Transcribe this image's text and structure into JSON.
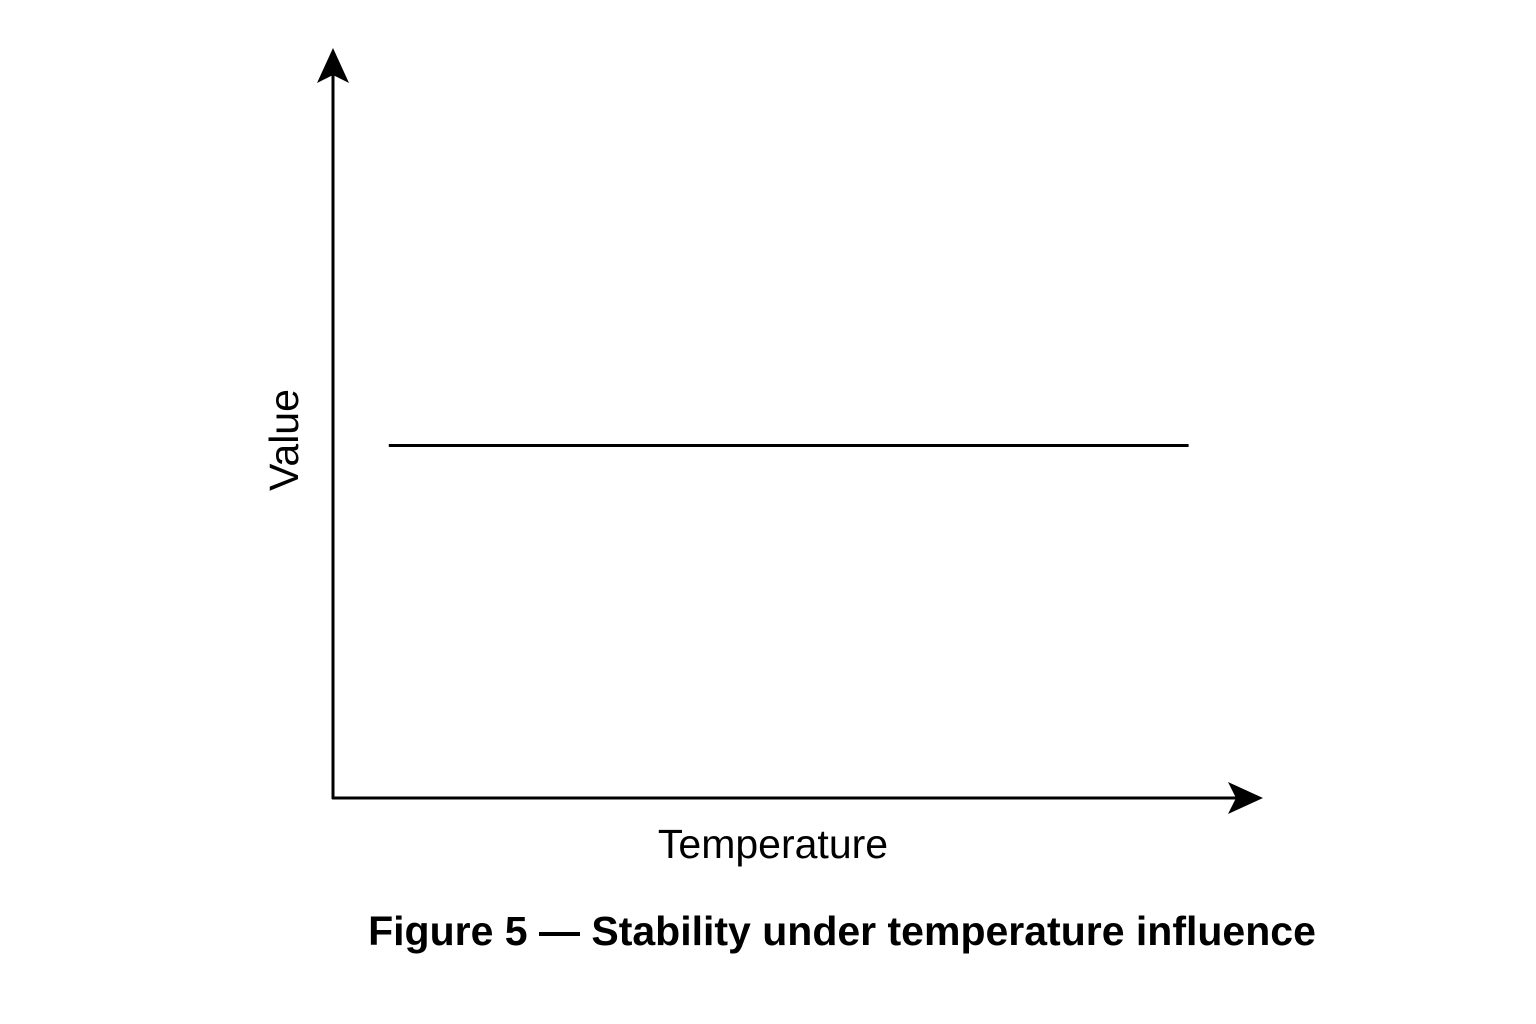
{
  "chart_data": {
    "type": "line",
    "title": "Figure 5 — Stability under temperature influence",
    "xlabel": "Temperature",
    "ylabel": "Value",
    "xlim": [
      0,
      1
    ],
    "ylim": [
      0,
      1
    ],
    "grid": false,
    "ticks": "none",
    "series": [
      {
        "name": "Value",
        "color": "#000000",
        "x": [
          0.06,
          0.92
        ],
        "y": [
          0.47,
          0.47
        ]
      }
    ]
  }
}
